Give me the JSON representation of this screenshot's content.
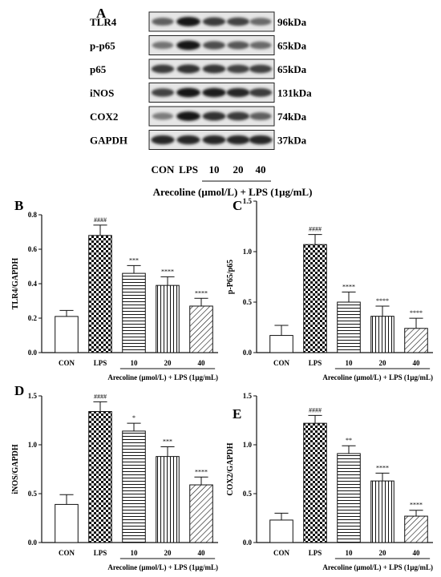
{
  "figure": {
    "panel_a": {
      "letter": "A",
      "proteins": [
        {
          "name": "TLR4",
          "mw": "96kDa",
          "intensity": [
            0.55,
            0.95,
            0.75,
            0.7,
            0.5
          ]
        },
        {
          "name": "p-p65",
          "mw": "65kDa",
          "intensity": [
            0.45,
            0.95,
            0.65,
            0.6,
            0.5
          ]
        },
        {
          "name": "p65",
          "mw": "65kDa",
          "intensity": [
            0.75,
            0.8,
            0.78,
            0.7,
            0.72
          ]
        },
        {
          "name": "iNOS",
          "mw": "131kDa",
          "intensity": [
            0.7,
            0.95,
            0.9,
            0.85,
            0.75
          ]
        },
        {
          "name": "COX2",
          "mw": "74kDa",
          "intensity": [
            0.4,
            0.95,
            0.8,
            0.75,
            0.55
          ]
        },
        {
          "name": "GAPDH",
          "mw": "37kDa",
          "intensity": [
            0.85,
            0.85,
            0.85,
            0.85,
            0.85
          ]
        }
      ],
      "lanes": [
        "CON",
        "LPS",
        "10",
        "20",
        "40"
      ],
      "treatment_label": "Arecoline (μmol/L) + LPS (1μg/mL)"
    }
  },
  "chart_data": [
    {
      "panel": "B",
      "type": "bar",
      "categories": [
        "CON",
        "LPS",
        "10",
        "20",
        "40"
      ],
      "values": [
        0.21,
        0.68,
        0.46,
        0.39,
        0.27
      ],
      "errors": [
        0.035,
        0.06,
        0.045,
        0.05,
        0.045
      ],
      "significance": [
        "",
        "####",
        "***",
        "****",
        "****"
      ],
      "patterns": [
        "none",
        "checker",
        "hstripe",
        "vstripe",
        "diag"
      ],
      "ylabel": "TLR4/GAPDH",
      "xlabel": "Arecoline (μmol/L) + LPS (1μg/mL)",
      "ylim": [
        0,
        0.8
      ],
      "yticks": [
        "0.0",
        "0.2",
        "0.4",
        "0.6",
        "0.8"
      ]
    },
    {
      "panel": "C",
      "type": "bar",
      "categories": [
        "CON",
        "LPS",
        "10",
        "20",
        "40"
      ],
      "values": [
        0.17,
        1.07,
        0.5,
        0.36,
        0.24
      ],
      "errors": [
        0.1,
        0.1,
        0.1,
        0.1,
        0.1
      ],
      "significance": [
        "",
        "####",
        "****",
        "****",
        "****"
      ],
      "patterns": [
        "none",
        "checker",
        "hstripe",
        "vstripe",
        "diag"
      ],
      "ylabel": "p-P65/p65",
      "xlabel": "Arecoline (μmol/L) + LPS (1μg/mL)",
      "ylim": [
        0,
        1.5
      ],
      "yticks": [
        "0.0",
        "0.5",
        "1.0",
        "1.5"
      ]
    },
    {
      "panel": "D",
      "type": "bar",
      "categories": [
        "CON",
        "LPS",
        "10",
        "20",
        "40"
      ],
      "values": [
        0.39,
        1.34,
        1.14,
        0.88,
        0.59
      ],
      "errors": [
        0.1,
        0.1,
        0.08,
        0.1,
        0.08
      ],
      "significance": [
        "",
        "####",
        "*",
        "***",
        "****"
      ],
      "patterns": [
        "none",
        "checker",
        "hstripe",
        "vstripe",
        "diag"
      ],
      "ylabel": "iNOS/GAPDH",
      "xlabel": "Arecoline (μmol/L) + LPS (1μg/mL)",
      "ylim": [
        0,
        1.5
      ],
      "yticks": [
        "0.0",
        "0.5",
        "1.0",
        "1.5"
      ]
    },
    {
      "panel": "E",
      "type": "bar",
      "categories": [
        "CON",
        "LPS",
        "10",
        "20",
        "40"
      ],
      "values": [
        0.23,
        1.22,
        0.91,
        0.63,
        0.27
      ],
      "errors": [
        0.07,
        0.08,
        0.08,
        0.08,
        0.06
      ],
      "significance": [
        "",
        "####",
        "**",
        "****",
        "****"
      ],
      "patterns": [
        "none",
        "checker",
        "hstripe",
        "vstripe",
        "diag"
      ],
      "ylabel": "COX2/GAPDH",
      "xlabel": "Arecoline (μmol/L) + LPS (1μg/mL)",
      "ylim": [
        0,
        1.5
      ],
      "yticks": [
        "0.0",
        "0.5",
        "1.0",
        "1.5"
      ]
    }
  ]
}
